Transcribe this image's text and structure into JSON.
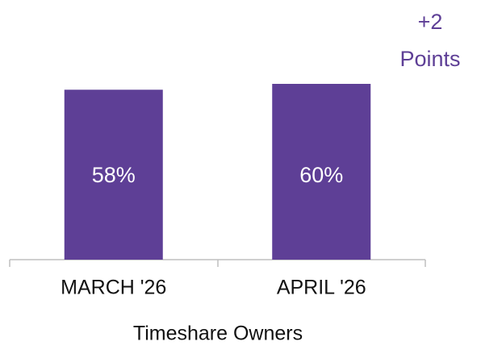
{
  "chart_data": {
    "type": "bar",
    "categories": [
      "MARCH '26",
      "APRIL '26"
    ],
    "values": [
      58,
      60
    ],
    "value_labels": [
      "58%",
      "60%"
    ],
    "color": "#5e3f96",
    "ylim": [
      0,
      60
    ],
    "x_label": "Timeshare Owners",
    "annotation": "+2 Points"
  }
}
